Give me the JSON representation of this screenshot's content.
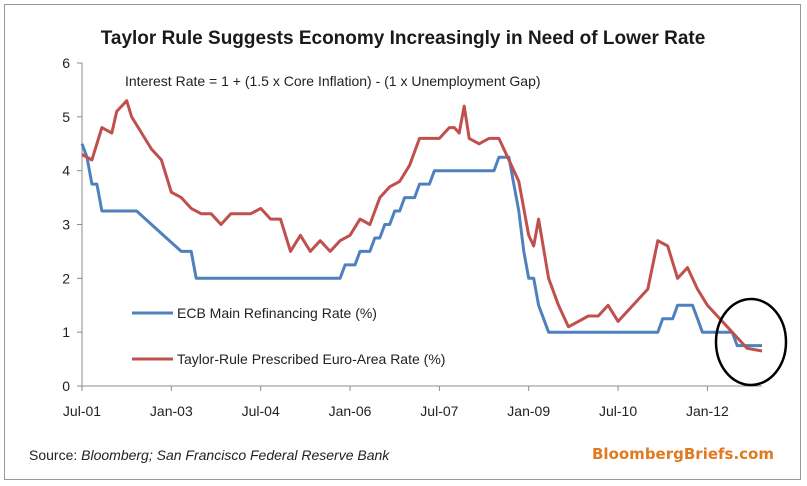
{
  "chart_data": {
    "type": "line",
    "title": "Taylor Rule Suggests Economy Increasingly in Need of Lower Rate",
    "annotation": "Interest Rate = 1 + (1.5 x Core Inflation) - (1 x Unemployment Gap)",
    "x_tick_labels": [
      "Jul-01",
      "Jan-03",
      "Jul-04",
      "Jan-06",
      "Jul-07",
      "Jan-09",
      "Jul-10",
      "Jan-12"
    ],
    "y_ticks": [
      0,
      1,
      2,
      3,
      4,
      5,
      6
    ],
    "ylim": [
      0,
      6
    ],
    "xlim": [
      "2001-07",
      "2012-12"
    ],
    "grid": false,
    "legend_position": "left, inside plot",
    "series": [
      {
        "name": "ECB Main Refinancing Rate (%)",
        "color": "#4f81bd",
        "x": [
          "2001-07",
          "2001-08",
          "2001-09",
          "2001-10",
          "2001-11",
          "2002-06",
          "2002-12",
          "2003-03",
          "2003-05",
          "2003-06",
          "2005-11",
          "2005-12",
          "2006-02",
          "2006-03",
          "2006-05",
          "2006-06",
          "2006-07",
          "2006-08",
          "2006-09",
          "2006-10",
          "2006-11",
          "2006-12",
          "2007-02",
          "2007-03",
          "2007-05",
          "2007-06",
          "2008-06",
          "2008-07",
          "2008-09",
          "2008-10",
          "2008-11",
          "2008-12",
          "2009-01",
          "2009-02",
          "2009-03",
          "2009-04",
          "2009-05",
          "2011-03",
          "2011-04",
          "2011-06",
          "2011-07",
          "2011-10",
          "2011-11",
          "2011-12",
          "2012-06",
          "2012-07",
          "2012-12"
        ],
        "values": [
          4.5,
          4.25,
          3.75,
          3.75,
          3.25,
          3.25,
          2.75,
          2.5,
          2.5,
          2.0,
          2.0,
          2.25,
          2.25,
          2.5,
          2.5,
          2.75,
          2.75,
          3.0,
          3.0,
          3.25,
          3.25,
          3.5,
          3.5,
          3.75,
          3.75,
          4.0,
          4.0,
          4.25,
          4.25,
          3.75,
          3.25,
          2.5,
          2.0,
          2.0,
          1.5,
          1.25,
          1.0,
          1.0,
          1.25,
          1.25,
          1.5,
          1.5,
          1.25,
          1.0,
          1.0,
          0.75,
          0.75
        ]
      },
      {
        "name": "Taylor-Rule Prescribed Euro-Area Rate (%)",
        "color": "#c0504d",
        "x": [
          "2001-07",
          "2001-09",
          "2001-11",
          "2002-01",
          "2002-02",
          "2002-03",
          "2002-04",
          "2002-05",
          "2002-07",
          "2002-09",
          "2002-11",
          "2003-01",
          "2003-03",
          "2003-05",
          "2003-07",
          "2003-09",
          "2003-11",
          "2004-01",
          "2004-03",
          "2004-05",
          "2004-07",
          "2004-09",
          "2004-11",
          "2005-01",
          "2005-03",
          "2005-05",
          "2005-07",
          "2005-09",
          "2005-11",
          "2006-01",
          "2006-03",
          "2006-05",
          "2006-07",
          "2006-09",
          "2006-11",
          "2007-01",
          "2007-03",
          "2007-05",
          "2007-07",
          "2007-09",
          "2007-10",
          "2007-11",
          "2007-12",
          "2008-01",
          "2008-03",
          "2008-05",
          "2008-07",
          "2008-09",
          "2008-11",
          "2009-01",
          "2009-02",
          "2009-03",
          "2009-05",
          "2009-07",
          "2009-09",
          "2009-11",
          "2010-01",
          "2010-03",
          "2010-05",
          "2010-07",
          "2010-09",
          "2010-11",
          "2011-01",
          "2011-03",
          "2011-05",
          "2011-07",
          "2011-09",
          "2011-11",
          "2012-01",
          "2012-03",
          "2012-05",
          "2012-07",
          "2012-09",
          "2012-12"
        ],
        "values": [
          4.3,
          4.2,
          4.8,
          4.7,
          5.1,
          5.2,
          5.3,
          5.0,
          4.7,
          4.4,
          4.2,
          3.6,
          3.5,
          3.3,
          3.2,
          3.2,
          3.0,
          3.2,
          3.2,
          3.2,
          3.3,
          3.1,
          3.1,
          2.5,
          2.8,
          2.5,
          2.7,
          2.5,
          2.7,
          2.8,
          3.1,
          3.0,
          3.5,
          3.7,
          3.8,
          4.1,
          4.6,
          4.6,
          4.6,
          4.8,
          4.8,
          4.7,
          5.2,
          4.6,
          4.5,
          4.6,
          4.6,
          4.2,
          3.8,
          2.8,
          2.6,
          3.1,
          2.0,
          1.5,
          1.1,
          1.2,
          1.3,
          1.3,
          1.5,
          1.2,
          1.4,
          1.6,
          1.8,
          2.7,
          2.6,
          2.0,
          2.2,
          1.8,
          1.5,
          1.3,
          1.1,
          0.9,
          0.7,
          0.65
        ]
      }
    ],
    "highlight": {
      "shape": "ellipse",
      "around": "end of both series, 2012"
    }
  },
  "footer": {
    "source_label": "Source: ",
    "source_detail": "Bloomberg; San Francisco Federal Reserve Bank",
    "brand": "BloombergBriefs.com",
    "brand_color": "#e07a1f"
  }
}
